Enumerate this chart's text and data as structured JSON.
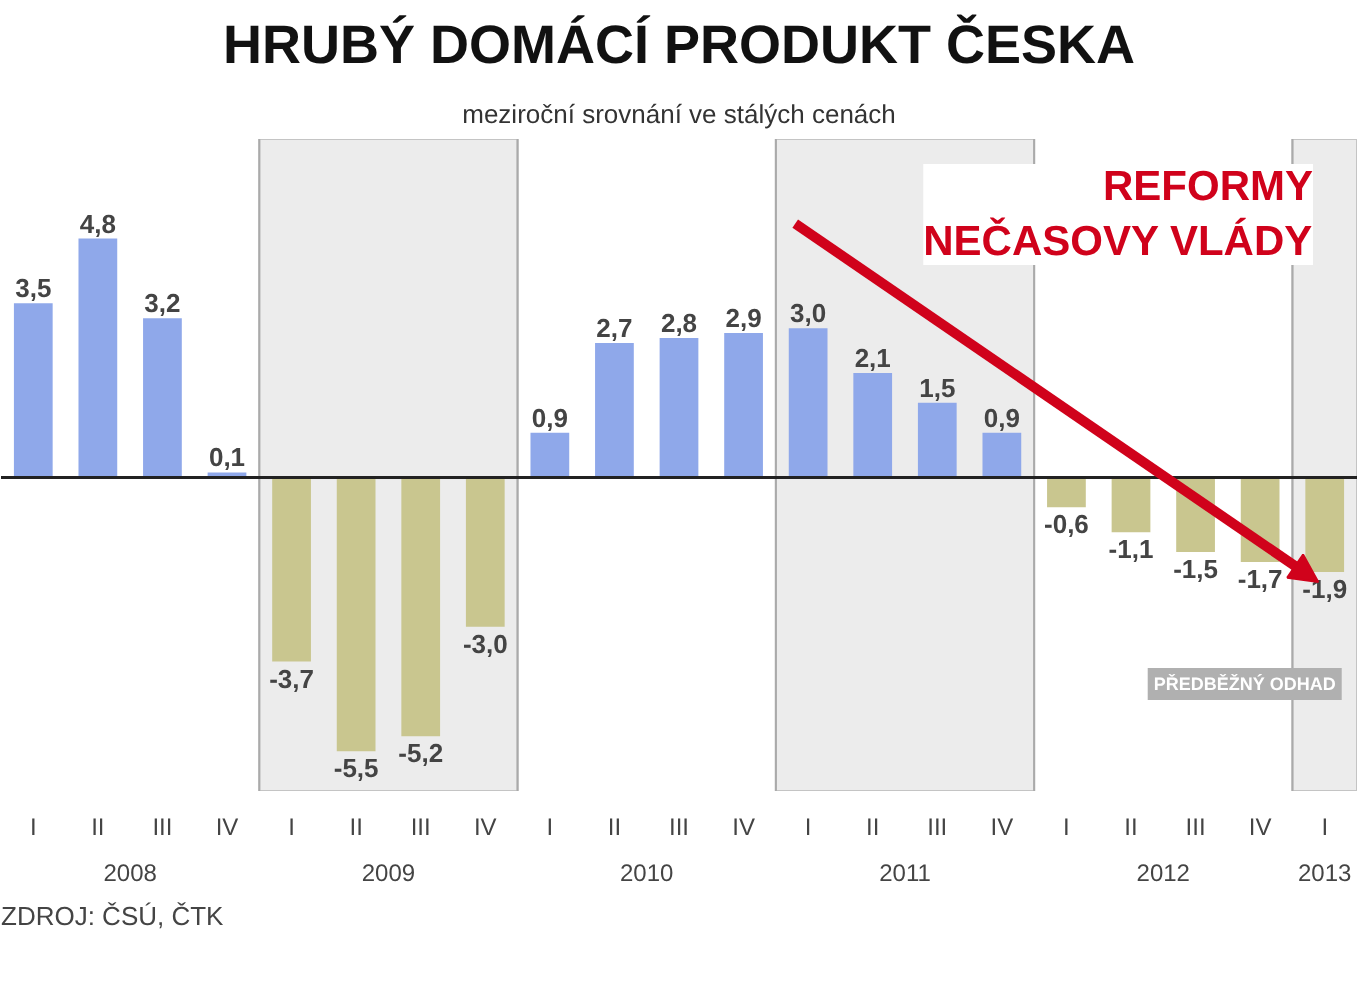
{
  "chart_data": {
    "type": "bar",
    "title": "HRUBÝ DOMÁCÍ PRODUKT ČESKA",
    "subtitle": "meziroční srovnání ve stálých cenách",
    "categories": [
      "I",
      "II",
      "III",
      "IV",
      "I",
      "II",
      "III",
      "IV",
      "I",
      "II",
      "III",
      "IV",
      "I",
      "II",
      "III",
      "IV",
      "I",
      "II",
      "III",
      "IV",
      "I"
    ],
    "values": [
      3.5,
      4.8,
      3.2,
      0.1,
      -3.7,
      -5.5,
      -5.2,
      -3.0,
      0.9,
      2.7,
      2.8,
      2.9,
      3.0,
      2.1,
      1.5,
      0.9,
      -0.6,
      -1.1,
      -1.5,
      -1.7,
      -1.9
    ],
    "colors": [
      "#8fa8ea",
      "#8fa8ea",
      "#8fa8ea",
      "#8fa8ea",
      "#c9c68f",
      "#c9c68f",
      "#c9c68f",
      "#c9c68f",
      "#8fa8ea",
      "#8fa8ea",
      "#8fa8ea",
      "#8fa8ea",
      "#8fa8ea",
      "#8fa8ea",
      "#8fa8ea",
      "#8fa8ea",
      "#c9c68f",
      "#c9c68f",
      "#c9c68f",
      "#c9c68f",
      "#c9c68f"
    ],
    "value_labels": [
      "3,5",
      "4,8",
      "3,2",
      "0,1",
      "-3,7",
      "-5,5",
      "-5,2",
      "-3,0",
      "0,9",
      "2,7",
      "2,8",
      "2,9",
      "3,0",
      "2,1",
      "1,5",
      "0,9",
      "-0,6",
      "-1,1",
      "-1,5",
      "-1,7",
      "-1,9"
    ],
    "ylim": [
      -6.3,
      6.8
    ],
    "annotations": [
      "2008",
      "2009",
      "2010",
      "2011",
      "2012",
      "2013",
      "REFORMY\nNEČASOVY VLÁDY",
      "PŘEDBĚŽNÝ ODHAD",
      "ZDROJ: ČSÚ, ČTK"
    ]
  }
}
